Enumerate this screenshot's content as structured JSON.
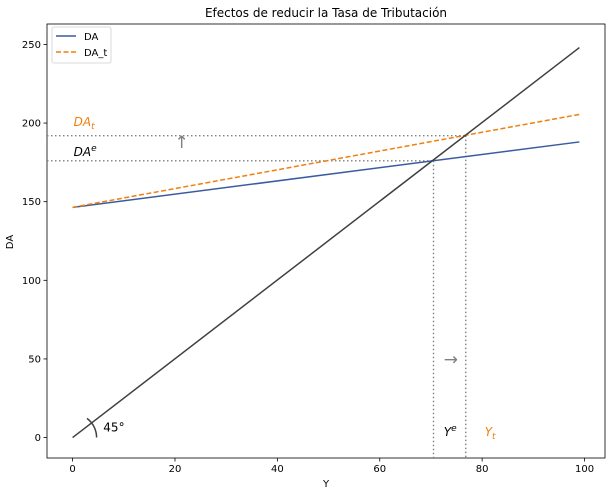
{
  "chart_data": {
    "type": "line",
    "title": "Efectos de reducir la Tasa de Tributación",
    "xlabel": "Y",
    "ylabel": "DA",
    "xlim": [
      -5,
      104
    ],
    "ylim": [
      -13,
      263
    ],
    "grid": false,
    "legend_position": "top-left",
    "x_ticks": [
      0,
      20,
      40,
      60,
      80,
      100
    ],
    "y_ticks": [
      0,
      50,
      100,
      150,
      200,
      250
    ],
    "series": [
      {
        "name": "DA",
        "style": "solid",
        "color": "#3a5ba0",
        "x": [
          0,
          99
        ],
        "y": [
          146.4,
          188.0
        ]
      },
      {
        "name": "DA_t",
        "style": "dashed",
        "color": "#f07f0e",
        "x": [
          0,
          99
        ],
        "y": [
          146.4,
          205.5
        ]
      },
      {
        "name": "",
        "style": "solid",
        "color": "#404040",
        "x": [
          0,
          99
        ],
        "y": [
          0,
          248
        ]
      }
    ],
    "reference_lines": {
      "h_DAe": 176.0,
      "h_DAt": 192.0,
      "v_Ye": 70.5,
      "v_Yt": 76.8
    },
    "annotations": {
      "da_t_label": {
        "text_main": "DA",
        "text_sub": "t",
        "x": 0.2,
        "y": 198,
        "color": "#f07f0e"
      },
      "da_e_label": {
        "text_main": "DA",
        "text_sup": "e",
        "x": 0.2,
        "y": 179,
        "color": "#000000"
      },
      "y_e_label": {
        "text_main": "Y",
        "text_sup": "e",
        "x": 72.5,
        "y": 1,
        "color": "#000000"
      },
      "y_t_label": {
        "text_main": "Y",
        "text_sub": "t",
        "x": 80.5,
        "y": 1,
        "color": "#f07f0e"
      },
      "angle_label": {
        "text": "45°",
        "x": 6,
        "y": 4
      },
      "arrow_up": {
        "glyph": "↑",
        "x": 21.3,
        "y": 184,
        "color": "#808080"
      },
      "arrow_right": {
        "glyph": "→",
        "x": 72.5,
        "y": 46,
        "color": "#808080"
      }
    }
  }
}
